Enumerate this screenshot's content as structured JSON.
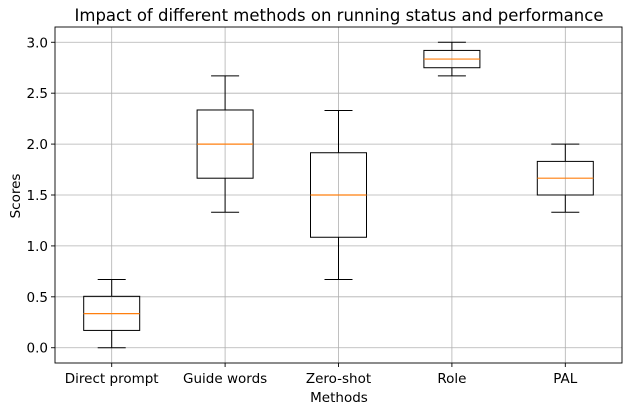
{
  "chart_data": {
    "type": "boxplot",
    "title": "Impact of different methods on running status and performance",
    "xlabel": "Methods",
    "ylabel": "Scores",
    "ylim": [
      -0.15,
      3.15
    ],
    "yticks": [
      0.0,
      0.5,
      1.0,
      1.5,
      2.0,
      2.5,
      3.0
    ],
    "ytick_labels": [
      "0.0",
      "0.5",
      "1.0",
      "1.5",
      "2.0",
      "2.5",
      "3.0"
    ],
    "grid": true,
    "categories": [
      "Direct prompt",
      "Guide words",
      "Zero-shot",
      "Role",
      "PAL"
    ],
    "boxes": [
      {
        "whislo": 0.0,
        "q1": 0.17,
        "med": 0.335,
        "q3": 0.505,
        "whishi": 0.67
      },
      {
        "whislo": 1.33,
        "q1": 1.665,
        "med": 2.0,
        "q3": 2.335,
        "whishi": 2.67
      },
      {
        "whislo": 0.67,
        "q1": 1.085,
        "med": 1.5,
        "q3": 1.915,
        "whishi": 2.33
      },
      {
        "whislo": 2.67,
        "q1": 2.75,
        "med": 2.835,
        "q3": 2.92,
        "whishi": 3.0
      },
      {
        "whislo": 1.33,
        "q1": 1.5,
        "med": 1.665,
        "q3": 1.83,
        "whishi": 2.0
      }
    ],
    "colors": {
      "median": "#ff7f0e",
      "box": "#000000",
      "grid": "#b0b0b0"
    }
  }
}
